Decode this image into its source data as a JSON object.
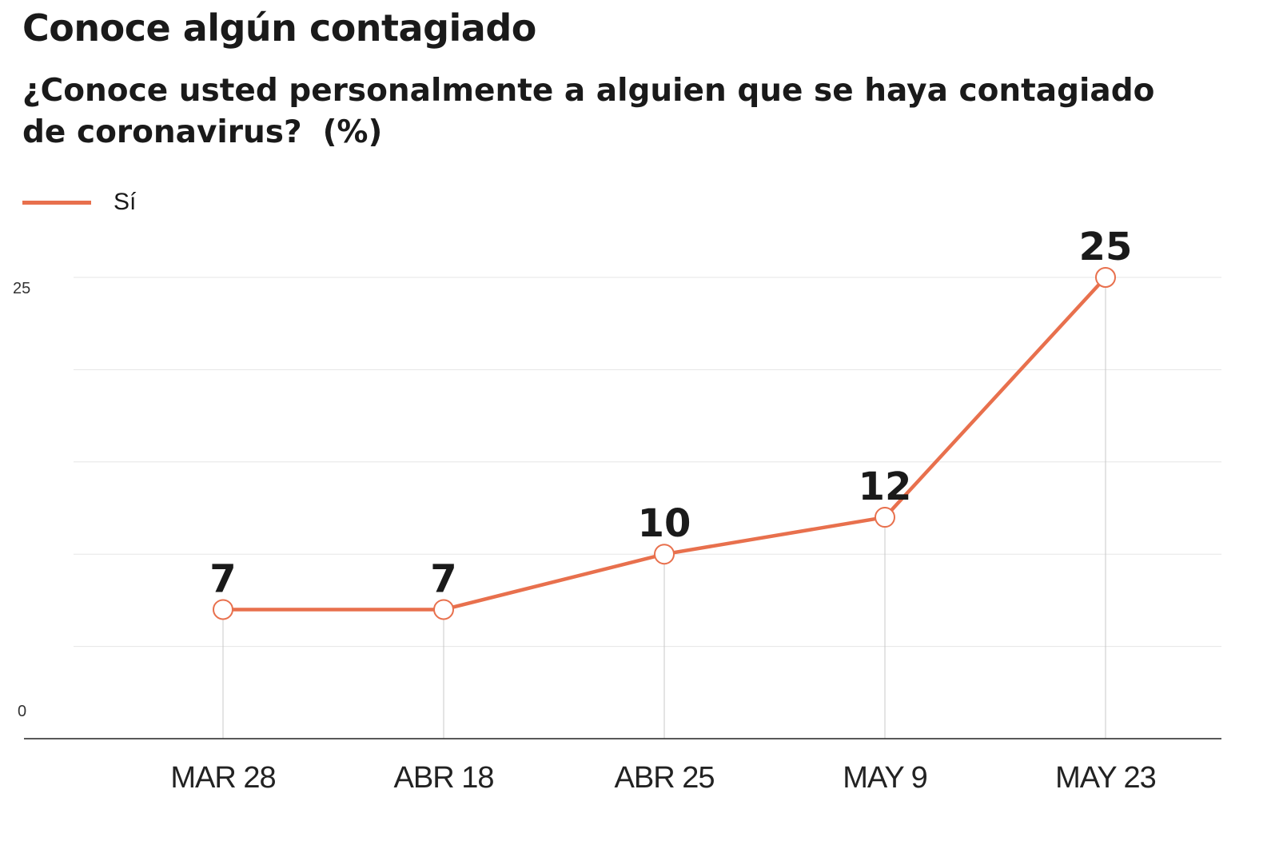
{
  "chart_data": {
    "type": "line",
    "title": "Conoce algún contagiado",
    "subtitle": "¿Conoce usted personalmente a alguien que se haya contagiado de coronavirus?",
    "unit": "(%)",
    "categories": [
      "MAR 28",
      "ABR 18",
      "ABR 25",
      "MAY 9",
      "MAY 23"
    ],
    "series": [
      {
        "name": "Sí",
        "values": [
          7,
          7,
          10,
          12,
          25
        ],
        "color": "#e8704d"
      }
    ],
    "ylim": [
      0,
      25
    ],
    "yticks": [
      "0",
      "25"
    ],
    "gridlines": 5,
    "legend_position": "top-left"
  }
}
